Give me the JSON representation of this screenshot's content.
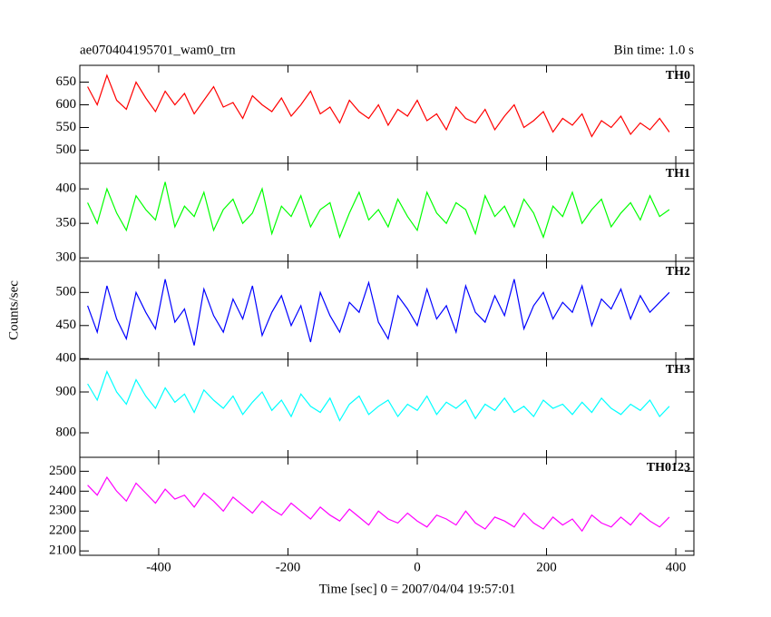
{
  "chart_data": {
    "type": "line",
    "title": "ae070404195701_wam0_trn",
    "subtitle": "Bin time: 1.0 s",
    "xlabel": "Time [sec] 0 = 2007/04/04 19:57:01",
    "ylabel": "Counts/sec",
    "xlim": [
      -522,
      428
    ],
    "xticks": [
      -400,
      -200,
      0,
      200,
      400
    ],
    "x": [
      -510,
      -495,
      -480,
      -465,
      -450,
      -435,
      -420,
      -405,
      -390,
      -375,
      -360,
      -345,
      -330,
      -315,
      -300,
      -285,
      -270,
      -255,
      -240,
      -225,
      -210,
      -195,
      -180,
      -165,
      -150,
      -135,
      -120,
      -105,
      -90,
      -75,
      -60,
      -45,
      -30,
      -15,
      0,
      15,
      30,
      45,
      60,
      75,
      90,
      105,
      120,
      135,
      150,
      165,
      180,
      195,
      210,
      225,
      240,
      255,
      270,
      285,
      300,
      315,
      330,
      345,
      360,
      375,
      390
    ],
    "series": [
      {
        "name": "TH0",
        "color": "#ff0000",
        "ylim": [
          471,
          687
        ],
        "yticks": [
          500,
          550,
          600,
          650
        ],
        "values": [
          640,
          600,
          665,
          610,
          590,
          650,
          615,
          585,
          630,
          600,
          625,
          580,
          610,
          640,
          595,
          605,
          570,
          620,
          600,
          585,
          615,
          575,
          600,
          630,
          580,
          595,
          560,
          610,
          585,
          570,
          600,
          555,
          590,
          575,
          610,
          565,
          580,
          545,
          595,
          570,
          560,
          590,
          545,
          575,
          600,
          550,
          565,
          585,
          540,
          570,
          555,
          580,
          530,
          565,
          550,
          575,
          535,
          560,
          545,
          570,
          540
        ]
      },
      {
        "name": "TH1",
        "color": "#00ff00",
        "ylim": [
          295,
          437
        ],
        "yticks": [
          300,
          350,
          400
        ],
        "values": [
          380,
          350,
          400,
          365,
          340,
          390,
          370,
          355,
          410,
          345,
          375,
          360,
          395,
          340,
          370,
          385,
          350,
          365,
          400,
          335,
          375,
          360,
          390,
          345,
          370,
          380,
          330,
          365,
          395,
          355,
          370,
          345,
          385,
          360,
          340,
          395,
          365,
          350,
          380,
          370,
          335,
          390,
          360,
          375,
          345,
          385,
          365,
          330,
          375,
          360,
          395,
          350,
          370,
          385,
          345,
          365,
          380,
          355,
          390,
          360,
          370
        ]
      },
      {
        "name": "TH2",
        "color": "#0000ff",
        "ylim": [
          399,
          547
        ],
        "yticks": [
          400,
          450,
          500
        ],
        "values": [
          480,
          440,
          510,
          460,
          430,
          500,
          470,
          445,
          520,
          455,
          475,
          420,
          505,
          465,
          440,
          490,
          460,
          510,
          435,
          470,
          495,
          450,
          480,
          425,
          500,
          465,
          440,
          485,
          470,
          515,
          455,
          430,
          495,
          475,
          450,
          505,
          460,
          480,
          440,
          510,
          470,
          455,
          495,
          465,
          520,
          445,
          480,
          500,
          460,
          485,
          470,
          510,
          450,
          490,
          475,
          505,
          460,
          495,
          470,
          485,
          500
        ]
      },
      {
        "name": "TH3",
        "color": "#00ffff",
        "ylim": [
          740,
          980
        ],
        "yticks": [
          800,
          900
        ],
        "values": [
          920,
          880,
          950,
          900,
          870,
          930,
          890,
          860,
          910,
          875,
          895,
          850,
          905,
          880,
          860,
          890,
          845,
          875,
          900,
          855,
          880,
          840,
          895,
          865,
          850,
          885,
          830,
          870,
          890,
          845,
          865,
          880,
          840,
          870,
          855,
          890,
          845,
          875,
          860,
          880,
          835,
          870,
          855,
          885,
          850,
          865,
          840,
          880,
          860,
          870,
          845,
          875,
          850,
          885,
          860,
          845,
          870,
          855,
          880,
          840,
          865
        ]
      },
      {
        "name": "TH0123",
        "color": "#ff00ff",
        "ylim": [
          2078,
          2570
        ],
        "yticks": [
          2100,
          2200,
          2300,
          2400,
          2500
        ],
        "values": [
          2430,
          2380,
          2470,
          2400,
          2350,
          2440,
          2390,
          2340,
          2410,
          2360,
          2380,
          2320,
          2390,
          2350,
          2300,
          2370,
          2330,
          2290,
          2350,
          2310,
          2280,
          2340,
          2300,
          2260,
          2320,
          2280,
          2250,
          2310,
          2270,
          2230,
          2300,
          2260,
          2240,
          2290,
          2250,
          2220,
          2280,
          2260,
          2230,
          2300,
          2240,
          2210,
          2270,
          2250,
          2220,
          2290,
          2240,
          2210,
          2270,
          2230,
          2260,
          2200,
          2280,
          2240,
          2220,
          2270,
          2230,
          2290,
          2250,
          2220,
          2270
        ]
      }
    ]
  }
}
